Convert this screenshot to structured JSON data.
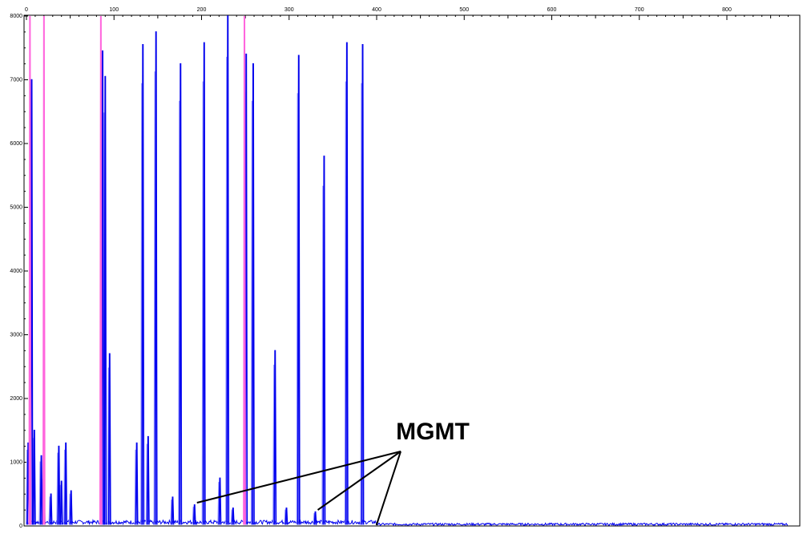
{
  "chart_data": {
    "type": "line",
    "title": "",
    "xlabel": "",
    "ylabel": "",
    "xlim": [
      0,
      870
    ],
    "ylim": [
      0,
      8000
    ],
    "x_ticks": [
      0,
      100,
      200,
      300,
      400,
      500,
      600,
      700,
      800
    ],
    "x_tick_labels": [
      "0",
      "100",
      "200",
      "300",
      "400",
      "500",
      "600",
      "700",
      "800"
    ],
    "y_ticks": [
      0,
      1000,
      2000,
      3000,
      4000,
      5000,
      6000,
      7000,
      8000
    ],
    "y_tick_labels": [
      "0",
      "1000",
      "2000",
      "3000",
      "4000",
      "5000",
      "6000",
      "7000",
      "8000"
    ],
    "grid": false,
    "legend": "none",
    "colors": {
      "primary_trace": "#0000ee",
      "secondary_trace": "#9090ff",
      "marker_trace": "#ff66dd",
      "annotation": "#000000"
    },
    "series": [
      {
        "role": "primary-peaks",
        "peaks": [
          {
            "x": 2,
            "y": 1300
          },
          {
            "x": 6,
            "y": 7000
          },
          {
            "x": 9,
            "y": 1500
          },
          {
            "x": 17,
            "y": 1100
          },
          {
            "x": 20,
            "y": 800
          },
          {
            "x": 28,
            "y": 500
          },
          {
            "x": 37,
            "y": 1250
          },
          {
            "x": 40,
            "y": 700
          },
          {
            "x": 45,
            "y": 1300
          },
          {
            "x": 51,
            "y": 550
          },
          {
            "x": 87,
            "y": 7450
          },
          {
            "x": 90,
            "y": 7050
          },
          {
            "x": 95,
            "y": 2700
          },
          {
            "x": 126,
            "y": 1300
          },
          {
            "x": 133,
            "y": 7550
          },
          {
            "x": 139,
            "y": 1400
          },
          {
            "x": 148,
            "y": 7750
          },
          {
            "x": 167,
            "y": 450
          },
          {
            "x": 176,
            "y": 7250
          },
          {
            "x": 192,
            "y": 330
          },
          {
            "x": 203,
            "y": 7580
          },
          {
            "x": 221,
            "y": 750
          },
          {
            "x": 230,
            "y": 8000
          },
          {
            "x": 236,
            "y": 280
          },
          {
            "x": 251,
            "y": 7400
          },
          {
            "x": 259,
            "y": 7250
          },
          {
            "x": 284,
            "y": 2750
          },
          {
            "x": 297,
            "y": 280
          },
          {
            "x": 311,
            "y": 7380
          },
          {
            "x": 330,
            "y": 220
          },
          {
            "x": 340,
            "y": 5800
          },
          {
            "x": 366,
            "y": 7580
          },
          {
            "x": 384,
            "y": 7550
          }
        ]
      },
      {
        "role": "size-marker-peaks",
        "peaks": [
          {
            "x": 4,
            "y": 8000
          },
          {
            "x": 20,
            "y": 8000
          },
          {
            "x": 85,
            "y": 8000
          },
          {
            "x": 249,
            "y": 8000
          }
        ]
      }
    ],
    "annotations": [
      {
        "text": "MGMT",
        "points_to_x": [
          192,
          330,
          397
        ]
      }
    ]
  }
}
